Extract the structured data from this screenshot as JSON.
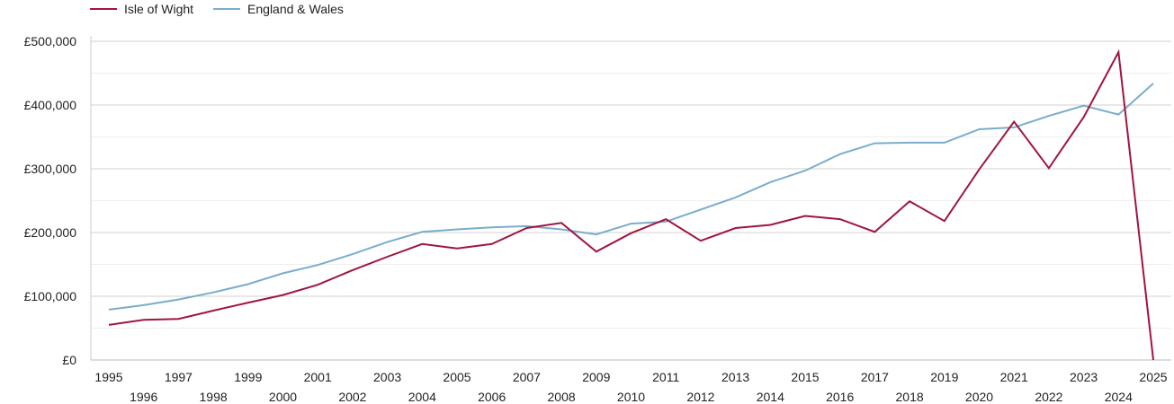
{
  "chart_data": {
    "type": "line",
    "title": "",
    "xlabel": "",
    "ylabel": "",
    "x": [
      1995,
      1996,
      1997,
      1998,
      1999,
      2000,
      2001,
      2002,
      2003,
      2004,
      2005,
      2006,
      2007,
      2008,
      2009,
      2010,
      2011,
      2012,
      2013,
      2014,
      2015,
      2016,
      2017,
      2018,
      2019,
      2020,
      2021,
      2022,
      2023,
      2024,
      2025
    ],
    "xlim": [
      1995,
      2025
    ],
    "ylim": [
      0,
      500000
    ],
    "y_ticks": [
      0,
      100000,
      200000,
      300000,
      400000,
      500000
    ],
    "y_tick_labels": [
      "£0",
      "£100,000",
      "£200,000",
      "£300,000",
      "£400,000",
      "£500,000"
    ],
    "x_tick_labels": [
      "1995",
      "1996",
      "1997",
      "1998",
      "1999",
      "2000",
      "2001",
      "2002",
      "2003",
      "2004",
      "2005",
      "2006",
      "2007",
      "2008",
      "2009",
      "2010",
      "2011",
      "2012",
      "2013",
      "2014",
      "2015",
      "2016",
      "2017",
      "2018",
      "2019",
      "2020",
      "2021",
      "2022",
      "2023",
      "2024",
      "2025"
    ],
    "grid": true,
    "legend_position": "top-left",
    "series": [
      {
        "name": "Isle of Wight",
        "color": "#a0153e",
        "values": [
          55000,
          63000,
          64500,
          77500,
          90000,
          102000,
          118000,
          141000,
          162000,
          182000,
          175000,
          182000,
          207000,
          215000,
          170000,
          199000,
          221000,
          187000,
          207000,
          212000,
          226000,
          221000,
          201000,
          249000,
          218000,
          299000,
          374000,
          301000,
          381000,
          483000,
          0
        ]
      },
      {
        "name": "England & Wales",
        "color": "#7aadcc",
        "values": [
          79000,
          86000,
          95000,
          106000,
          119000,
          136000,
          149000,
          166000,
          185000,
          201000,
          205000,
          208000,
          210000,
          205000,
          197000,
          214000,
          217000,
          236000,
          255000,
          279000,
          297000,
          323000,
          340000,
          341000,
          341000,
          362000,
          365000,
          383000,
          399000,
          385000,
          434000
        ]
      }
    ]
  }
}
